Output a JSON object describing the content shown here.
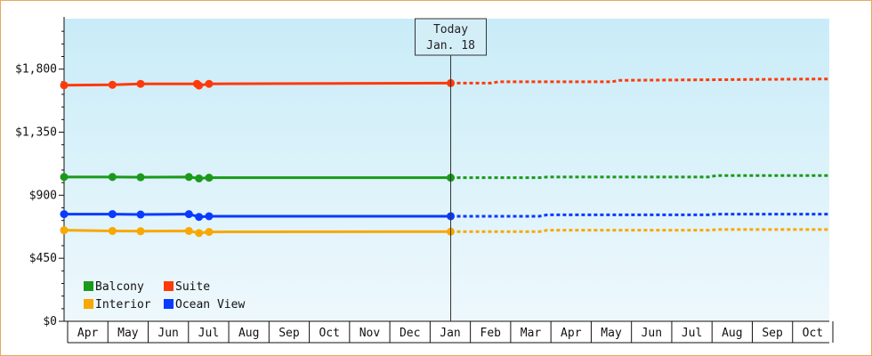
{
  "chart_data": {
    "type": "line",
    "title": "",
    "xlabel": "",
    "ylabel": "",
    "ylim": [
      0,
      2160
    ],
    "y_ticks": [
      0,
      450,
      900,
      1350,
      1800
    ],
    "y_tick_labels": [
      "$0",
      "$450",
      "$900",
      "$1,350",
      "$1,800"
    ],
    "x_range": [
      0,
      19
    ],
    "month_labels": [
      "Apr",
      "May",
      "Jun",
      "Jul",
      "Aug",
      "Sep",
      "Oct",
      "Nov",
      "Dec",
      "Jan",
      "Feb",
      "Mar",
      "Apr",
      "May",
      "Jun",
      "Jul",
      "Aug",
      "Sep",
      "Oct"
    ],
    "today_marker": {
      "x": 9.6,
      "line1": "Today",
      "line2": "Jan. 18"
    },
    "legend_position": "bottom-left",
    "grid": false,
    "background_gradient": [
      "#c9ecf8",
      "#eef8fc"
    ],
    "series": [
      {
        "name": "Balcony",
        "color": "#1a9a1a",
        "points": [
          [
            0,
            1030
          ],
          [
            1.2,
            1030
          ],
          [
            1.9,
            1028
          ],
          [
            3.1,
            1030
          ],
          [
            3.35,
            1020
          ],
          [
            3.6,
            1025
          ],
          [
            9.6,
            1025
          ]
        ],
        "forecast": [
          [
            9.6,
            1025
          ],
          [
            11.8,
            1025
          ],
          [
            12,
            1030
          ],
          [
            16,
            1030
          ],
          [
            16.2,
            1040
          ],
          [
            19,
            1040
          ]
        ]
      },
      {
        "name": "Suite",
        "color": "#ff3a0a",
        "points": [
          [
            0,
            1685
          ],
          [
            1.2,
            1688
          ],
          [
            1.9,
            1695
          ],
          [
            3.3,
            1695
          ],
          [
            3.35,
            1683
          ],
          [
            3.6,
            1695
          ],
          [
            9.6,
            1700
          ]
        ],
        "forecast": [
          [
            9.6,
            1700
          ],
          [
            10.6,
            1700
          ],
          [
            10.8,
            1710
          ],
          [
            13.6,
            1710
          ],
          [
            13.8,
            1720
          ],
          [
            19,
            1730
          ]
        ]
      },
      {
        "name": "Interior",
        "color": "#f8a800",
        "points": [
          [
            0,
            650
          ],
          [
            1.2,
            645
          ],
          [
            1.9,
            643
          ],
          [
            3.1,
            645
          ],
          [
            3.35,
            630
          ],
          [
            3.6,
            638
          ],
          [
            9.6,
            640
          ]
        ],
        "forecast": [
          [
            9.6,
            640
          ],
          [
            11.8,
            640
          ],
          [
            12,
            650
          ],
          [
            16,
            650
          ],
          [
            16.2,
            655
          ],
          [
            19,
            655
          ]
        ]
      },
      {
        "name": "Ocean View",
        "color": "#0a3aff",
        "points": [
          [
            0,
            765
          ],
          [
            1.2,
            765
          ],
          [
            1.9,
            762
          ],
          [
            3.1,
            765
          ],
          [
            3.35,
            745
          ],
          [
            3.6,
            750
          ],
          [
            9.6,
            750
          ]
        ],
        "forecast": [
          [
            9.6,
            750
          ],
          [
            11.8,
            750
          ],
          [
            12,
            760
          ],
          [
            16,
            760
          ],
          [
            16.2,
            765
          ],
          [
            19,
            765
          ]
        ]
      }
    ],
    "legend": [
      {
        "name": "Balcony",
        "color": "#1a9a1a"
      },
      {
        "name": "Suite",
        "color": "#ff3a0a"
      },
      {
        "name": "Interior",
        "color": "#f8a800"
      },
      {
        "name": "Ocean View",
        "color": "#0a3aff"
      }
    ]
  }
}
